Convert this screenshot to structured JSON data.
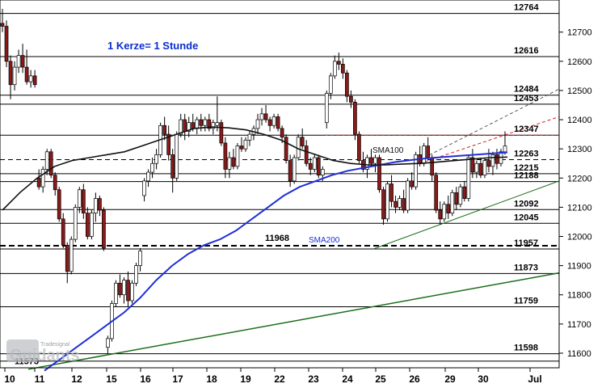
{
  "chart_data": {
    "type": "candlestick",
    "note": "1 Kerze= 1 Stunde",
    "y_range": [
      11550,
      12810
    ],
    "y_ticks": [
      11600,
      11700,
      11800,
      11900,
      12000,
      12100,
      12200,
      12300,
      12400,
      12500,
      12600,
      12700
    ],
    "x_ticks": [
      "10",
      "11",
      "12",
      "15",
      "16",
      "17",
      "18",
      "19",
      "22",
      "23",
      "24",
      "25",
      "26",
      "29",
      "30",
      "Jul"
    ],
    "levels": [
      {
        "value": 12764,
        "label": "12764",
        "style": "solid"
      },
      {
        "value": 12616,
        "label": "12616",
        "style": "solid"
      },
      {
        "value": 12484,
        "label": "12484",
        "style": "solid"
      },
      {
        "value": 12453,
        "label": "12453",
        "style": "solid"
      },
      {
        "value": 12347,
        "label": "12347",
        "style": "solid"
      },
      {
        "value": 12263,
        "label": "12263",
        "style": "dashed"
      },
      {
        "value": 12215,
        "label": "12215",
        "style": "solid"
      },
      {
        "value": 12188,
        "label": "12188",
        "style": "solid"
      },
      {
        "value": 12092,
        "label": "12092",
        "style": "solid"
      },
      {
        "value": 12045,
        "label": "12045",
        "style": "solid"
      },
      {
        "value": 11957,
        "label": "11957",
        "style": "solid"
      },
      {
        "value": 11968,
        "label": "11968",
        "style": "bold-dashed"
      },
      {
        "value": 11873,
        "label": "11873",
        "style": "solid"
      },
      {
        "value": 11759,
        "label": "11759",
        "style": "solid"
      },
      {
        "value": 11598,
        "label": "11598",
        "style": "solid"
      },
      {
        "value": 11573,
        "label": "11573",
        "style": "solid"
      }
    ],
    "ma_labels": {
      "sma100": "SMA100",
      "sma200": "SMA200"
    },
    "colors": {
      "up": "#ffffff",
      "down": "#8b1a1a",
      "sma100": "#111111",
      "sma200": "#1f2fd6",
      "trend": "#1a6e1a",
      "red_dash": "#cc2222"
    },
    "logo": {
      "main": "Guidants",
      "sub": "Tradesignal"
    },
    "candles": [
      {
        "o": 12730,
        "h": 12780,
        "l": 12700,
        "c": 12720
      },
      {
        "o": 12720,
        "h": 12740,
        "l": 12580,
        "c": 12600
      },
      {
        "o": 12600,
        "h": 12620,
        "l": 12470,
        "c": 12520
      },
      {
        "o": 12520,
        "h": 12600,
        "l": 12500,
        "c": 12580
      },
      {
        "o": 12580,
        "h": 12640,
        "l": 12560,
        "c": 12620
      },
      {
        "o": 12620,
        "h": 12660,
        "l": 12560,
        "c": 12580
      },
      {
        "o": 12580,
        "h": 12640,
        "l": 12520,
        "c": 12530
      },
      {
        "o": 12530,
        "h": 12570,
        "l": 12510,
        "c": 12550
      },
      {
        "o": 12550,
        "h": 12570,
        "l": 12510,
        "c": 12520
      },
      {
        "o": 12200,
        "h": 12230,
        "l": 12160,
        "c": 12170
      },
      {
        "o": 12170,
        "h": 12240,
        "l": 12150,
        "c": 12230
      },
      {
        "o": 12230,
        "h": 12300,
        "l": 12210,
        "c": 12290
      },
      {
        "o": 12290,
        "h": 12300,
        "l": 12200,
        "c": 12210
      },
      {
        "o": 12210,
        "h": 12220,
        "l": 12140,
        "c": 12160
      },
      {
        "o": 12160,
        "h": 12170,
        "l": 12050,
        "c": 12060
      },
      {
        "o": 12060,
        "h": 12080,
        "l": 11960,
        "c": 11970
      },
      {
        "o": 11970,
        "h": 11980,
        "l": 11840,
        "c": 11880
      },
      {
        "o": 11880,
        "h": 12000,
        "l": 11870,
        "c": 11990
      },
      {
        "o": 11990,
        "h": 12110,
        "l": 11980,
        "c": 12100
      },
      {
        "o": 12100,
        "h": 12170,
        "l": 12080,
        "c": 12160
      },
      {
        "o": 12160,
        "h": 12180,
        "l": 12060,
        "c": 12080
      },
      {
        "o": 12080,
        "h": 12100,
        "l": 11990,
        "c": 12000
      },
      {
        "o": 12000,
        "h": 12090,
        "l": 11990,
        "c": 12080
      },
      {
        "o": 12080,
        "h": 12150,
        "l": 12050,
        "c": 12130
      },
      {
        "o": 12130,
        "h": 12140,
        "l": 12070,
        "c": 12090
      },
      {
        "o": 12090,
        "h": 12100,
        "l": 11950,
        "c": 11960
      },
      {
        "o": 11620,
        "h": 11660,
        "l": 11600,
        "c": 11650
      },
      {
        "o": 11650,
        "h": 11780,
        "l": 11640,
        "c": 11770
      },
      {
        "o": 11770,
        "h": 11850,
        "l": 11760,
        "c": 11840
      },
      {
        "o": 11840,
        "h": 11870,
        "l": 11790,
        "c": 11800
      },
      {
        "o": 11800,
        "h": 11860,
        "l": 11770,
        "c": 11850
      },
      {
        "o": 11850,
        "h": 11880,
        "l": 11760,
        "c": 11780
      },
      {
        "o": 11780,
        "h": 11850,
        "l": 11770,
        "c": 11840
      },
      {
        "o": 11840,
        "h": 11910,
        "l": 11830,
        "c": 11900
      },
      {
        "o": 11900,
        "h": 11960,
        "l": 11880,
        "c": 11950
      },
      {
        "o": 12140,
        "h": 12200,
        "l": 12120,
        "c": 12190
      },
      {
        "o": 12190,
        "h": 12230,
        "l": 12170,
        "c": 12220
      },
      {
        "o": 12220,
        "h": 12270,
        "l": 12200,
        "c": 12250
      },
      {
        "o": 12250,
        "h": 12300,
        "l": 12230,
        "c": 12280
      },
      {
        "o": 12280,
        "h": 12390,
        "l": 12270,
        "c": 12380
      },
      {
        "o": 12380,
        "h": 12410,
        "l": 12330,
        "c": 12350
      },
      {
        "o": 12350,
        "h": 12380,
        "l": 12260,
        "c": 12280
      },
      {
        "o": 12280,
        "h": 12300,
        "l": 12150,
        "c": 12200
      },
      {
        "o": 12200,
        "h": 12360,
        "l": 12190,
        "c": 12350
      },
      {
        "o": 12350,
        "h": 12420,
        "l": 12340,
        "c": 12400
      },
      {
        "o": 12400,
        "h": 12420,
        "l": 12330,
        "c": 12360
      },
      {
        "o": 12360,
        "h": 12410,
        "l": 12340,
        "c": 12390
      },
      {
        "o": 12390,
        "h": 12420,
        "l": 12360,
        "c": 12370
      },
      {
        "o": 12370,
        "h": 12410,
        "l": 12350,
        "c": 12400
      },
      {
        "o": 12400,
        "h": 12420,
        "l": 12360,
        "c": 12380
      },
      {
        "o": 12380,
        "h": 12410,
        "l": 12360,
        "c": 12400
      },
      {
        "o": 12400,
        "h": 12420,
        "l": 12360,
        "c": 12370
      },
      {
        "o": 12370,
        "h": 12400,
        "l": 12350,
        "c": 12390
      },
      {
        "o": 12380,
        "h": 12480,
        "l": 12360,
        "c": 12390
      },
      {
        "o": 12390,
        "h": 12400,
        "l": 12310,
        "c": 12320
      },
      {
        "o": 12320,
        "h": 12340,
        "l": 12200,
        "c": 12230
      },
      {
        "o": 12230,
        "h": 12290,
        "l": 12200,
        "c": 12270
      },
      {
        "o": 12270,
        "h": 12300,
        "l": 12230,
        "c": 12240
      },
      {
        "o": 12240,
        "h": 12320,
        "l": 12230,
        "c": 12310
      },
      {
        "o": 12310,
        "h": 12340,
        "l": 12290,
        "c": 12300
      },
      {
        "o": 12300,
        "h": 12340,
        "l": 12290,
        "c": 12330
      },
      {
        "o": 12330,
        "h": 12360,
        "l": 12310,
        "c": 12350
      },
      {
        "o": 12350,
        "h": 12380,
        "l": 12330,
        "c": 12370
      },
      {
        "o": 12370,
        "h": 12420,
        "l": 12350,
        "c": 12400
      },
      {
        "o": 12400,
        "h": 12440,
        "l": 12380,
        "c": 12420
      },
      {
        "o": 12420,
        "h": 12450,
        "l": 12390,
        "c": 12400
      },
      {
        "o": 12400,
        "h": 12410,
        "l": 12360,
        "c": 12380
      },
      {
        "o": 12380,
        "h": 12420,
        "l": 12370,
        "c": 12410
      },
      {
        "o": 12410,
        "h": 12420,
        "l": 12360,
        "c": 12370
      },
      {
        "o": 12370,
        "h": 12380,
        "l": 12320,
        "c": 12340
      },
      {
        "o": 12340,
        "h": 12350,
        "l": 12250,
        "c": 12260
      },
      {
        "o": 12260,
        "h": 12280,
        "l": 12170,
        "c": 12190
      },
      {
        "o": 12190,
        "h": 12280,
        "l": 12180,
        "c": 12270
      },
      {
        "o": 12270,
        "h": 12350,
        "l": 12260,
        "c": 12340
      },
      {
        "o": 12340,
        "h": 12370,
        "l": 12300,
        "c": 12310
      },
      {
        "o": 12310,
        "h": 12330,
        "l": 12240,
        "c": 12250
      },
      {
        "o": 12250,
        "h": 12270,
        "l": 12210,
        "c": 12230
      },
      {
        "o": 12230,
        "h": 12280,
        "l": 12220,
        "c": 12270
      },
      {
        "o": 12270,
        "h": 12280,
        "l": 12200,
        "c": 12210
      },
      {
        "o": 12210,
        "h": 12240,
        "l": 12190,
        "c": 12230
      },
      {
        "o": 12390,
        "h": 12500,
        "l": 12370,
        "c": 12490
      },
      {
        "o": 12490,
        "h": 12560,
        "l": 12470,
        "c": 12550
      },
      {
        "o": 12550,
        "h": 12620,
        "l": 12540,
        "c": 12600
      },
      {
        "o": 12600,
        "h": 12630,
        "l": 12570,
        "c": 12590
      },
      {
        "o": 12590,
        "h": 12610,
        "l": 12540,
        "c": 12560
      },
      {
        "o": 12560,
        "h": 12570,
        "l": 12460,
        "c": 12480
      },
      {
        "o": 12480,
        "h": 12500,
        "l": 12440,
        "c": 12460
      },
      {
        "o": 12460,
        "h": 12470,
        "l": 12330,
        "c": 12350
      },
      {
        "o": 12350,
        "h": 12360,
        "l": 12250,
        "c": 12260
      },
      {
        "o": 12260,
        "h": 12290,
        "l": 12220,
        "c": 12230
      },
      {
        "o": 12230,
        "h": 12280,
        "l": 12200,
        "c": 12270
      },
      {
        "o": 12270,
        "h": 12300,
        "l": 12240,
        "c": 12250
      },
      {
        "o": 12250,
        "h": 12280,
        "l": 12220,
        "c": 12270
      },
      {
        "o": 12270,
        "h": 12280,
        "l": 12150,
        "c": 12160
      },
      {
        "o": 12160,
        "h": 12170,
        "l": 12040,
        "c": 12060
      },
      {
        "o": 12060,
        "h": 12190,
        "l": 12050,
        "c": 12180
      },
      {
        "o": 12180,
        "h": 12210,
        "l": 12100,
        "c": 12120
      },
      {
        "o": 12120,
        "h": 12140,
        "l": 12080,
        "c": 12100
      },
      {
        "o": 12100,
        "h": 12140,
        "l": 12090,
        "c": 12130
      },
      {
        "o": 12130,
        "h": 12160,
        "l": 12080,
        "c": 12090
      },
      {
        "o": 12090,
        "h": 12200,
        "l": 12080,
        "c": 12190
      },
      {
        "o": 12190,
        "h": 12220,
        "l": 12160,
        "c": 12170
      },
      {
        "o": 12170,
        "h": 12290,
        "l": 12160,
        "c": 12280
      },
      {
        "o": 12280,
        "h": 12310,
        "l": 12240,
        "c": 12250
      },
      {
        "o": 12250,
        "h": 12320,
        "l": 12240,
        "c": 12310
      },
      {
        "o": 12310,
        "h": 12340,
        "l": 12260,
        "c": 12270
      },
      {
        "o": 12270,
        "h": 12280,
        "l": 12190,
        "c": 12210
      },
      {
        "o": 12210,
        "h": 12220,
        "l": 12080,
        "c": 12090
      },
      {
        "o": 12090,
        "h": 12120,
        "l": 12040,
        "c": 12060
      },
      {
        "o": 12060,
        "h": 12120,
        "l": 12050,
        "c": 12110
      },
      {
        "o": 12110,
        "h": 12140,
        "l": 12060,
        "c": 12080
      },
      {
        "o": 12080,
        "h": 12160,
        "l": 12070,
        "c": 12150
      },
      {
        "o": 12150,
        "h": 12170,
        "l": 12090,
        "c": 12110
      },
      {
        "o": 12110,
        "h": 12180,
        "l": 12100,
        "c": 12170
      },
      {
        "o": 12170,
        "h": 12190,
        "l": 12120,
        "c": 12130
      },
      {
        "o": 12130,
        "h": 12280,
        "l": 12120,
        "c": 12270
      },
      {
        "o": 12270,
        "h": 12300,
        "l": 12200,
        "c": 12220
      },
      {
        "o": 12220,
        "h": 12260,
        "l": 12200,
        "c": 12250
      },
      {
        "o": 12250,
        "h": 12270,
        "l": 12200,
        "c": 12210
      },
      {
        "o": 12210,
        "h": 12270,
        "l": 12200,
        "c": 12260
      },
      {
        "o": 12260,
        "h": 12300,
        "l": 12220,
        "c": 12240
      },
      {
        "o": 12240,
        "h": 12290,
        "l": 12210,
        "c": 12280
      },
      {
        "o": 12280,
        "h": 12300,
        "l": 12230,
        "c": 12250
      },
      {
        "o": 12250,
        "h": 12300,
        "l": 12240,
        "c": 12290
      },
      {
        "o": 12290,
        "h": 12360,
        "l": 12280,
        "c": 12310
      }
    ],
    "sma100": [
      12090,
      12150,
      12200,
      12240,
      12260,
      12270,
      12280,
      12290,
      12310,
      12330,
      12350,
      12370,
      12375,
      12372,
      12365,
      12350,
      12330,
      12300,
      12280,
      12260,
      12250,
      12245,
      12245,
      12248,
      12250,
      12255,
      12260,
      12265,
      12270,
      12272
    ],
    "sma200": [
      11540,
      11580,
      11620,
      11660,
      11700,
      11740,
      11790,
      11850,
      11900,
      11940,
      11970,
      11990,
      12020,
      12060,
      12100,
      12140,
      12170,
      12190,
      12210,
      12225,
      12235,
      12245,
      12255,
      12262,
      12268,
      12272,
      12276,
      12280,
      12284,
      12288
    ]
  }
}
